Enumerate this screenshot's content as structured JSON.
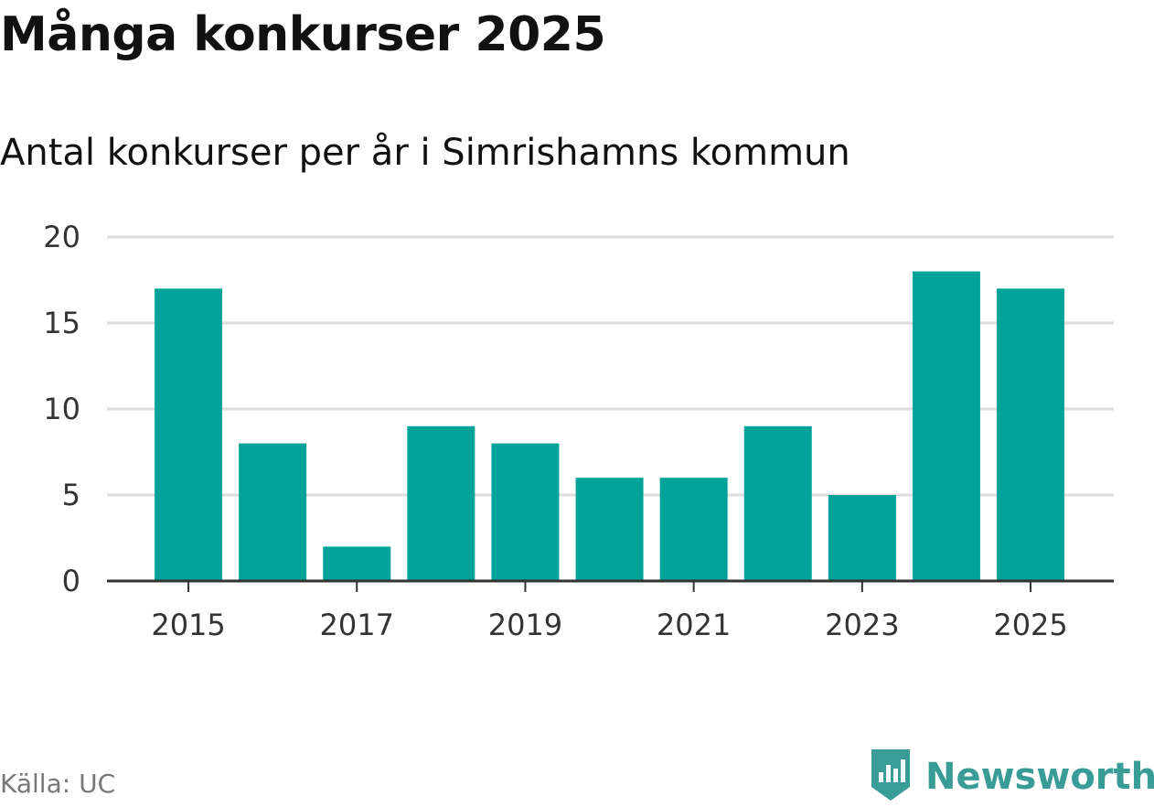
{
  "header": {
    "title": "Många konkurser 2025",
    "subtitle": "Antal konkurser per år i Simrishamns kommun"
  },
  "footer": {
    "source": "Källa: UC",
    "brand_name": "Newsworthy",
    "brand_icon": "newsworthy-logo-icon"
  },
  "colors": {
    "bar": "#00A39A",
    "brand": "#3A9C97",
    "grid": "#DDDDDD",
    "axis": "#333333"
  },
  "chart_data": {
    "type": "bar",
    "categories": [
      "2015",
      "2016",
      "2017",
      "2018",
      "2019",
      "2020",
      "2021",
      "2022",
      "2023",
      "2024",
      "2025"
    ],
    "values": [
      17,
      8,
      2,
      9,
      8,
      6,
      6,
      9,
      5,
      18,
      17
    ],
    "x_tick_labels": [
      "2015",
      "2017",
      "2019",
      "2021",
      "2023",
      "2025"
    ],
    "y_ticks": [
      0,
      5,
      10,
      15,
      20
    ],
    "ylim": [
      0,
      20
    ],
    "xlabel": "",
    "ylabel": "",
    "grid": true,
    "legend": "none"
  }
}
